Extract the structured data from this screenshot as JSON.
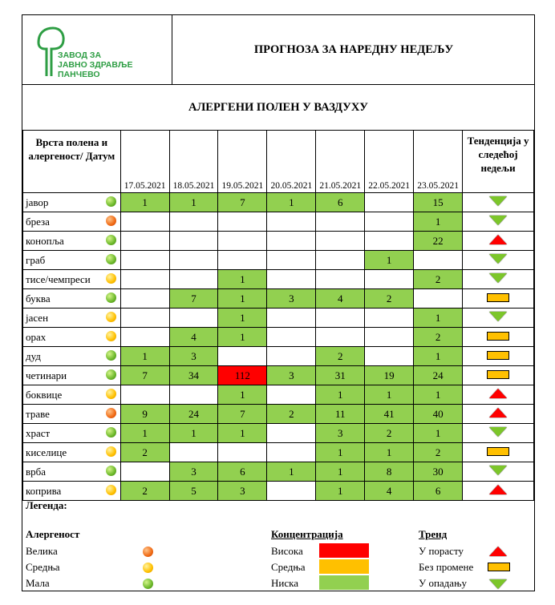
{
  "logo": {
    "line1": "ЗАВОД ЗА",
    "line2": "ЈАВНО ЗДРАВЉЕ",
    "line3": "ПАНЧЕВО",
    "color": "#2e9e44"
  },
  "title": "ПРОГНОЗА ЗА НАРЕДНУ НЕДЕЉУ",
  "subtitle": "АЛЕРГЕНИ ПОЛЕН У ВАЗДУХУ",
  "table": {
    "name_header": "Врста полена и алергеност/ Датум",
    "trend_header": "Тенденција у следећој недељи",
    "dates": [
      "17.05.2021",
      "18.05.2021",
      "19.05.2021",
      "20.05.2021",
      "21.05.2021",
      "22.05.2021",
      "23.05.2021"
    ],
    "rows": [
      {
        "name": "јавор",
        "allergen": "low",
        "values": [
          "1",
          "1",
          "7",
          "1",
          "6",
          "",
          "15"
        ],
        "levels": [
          "low",
          "low",
          "low",
          "low",
          "low",
          "",
          "low"
        ],
        "trend": "down"
      },
      {
        "name": "бреза",
        "allergen": "high",
        "values": [
          "",
          "",
          "",
          "",
          "",
          "",
          "1"
        ],
        "levels": [
          "",
          "",
          "",
          "",
          "",
          "",
          "low"
        ],
        "trend": "down"
      },
      {
        "name": "конопља",
        "allergen": "low",
        "values": [
          "",
          "",
          "",
          "",
          "",
          "",
          "22"
        ],
        "levels": [
          "",
          "",
          "",
          "",
          "",
          "",
          "low"
        ],
        "trend": "up"
      },
      {
        "name": "граб",
        "allergen": "low",
        "values": [
          "",
          "",
          "",
          "",
          "",
          "1",
          ""
        ],
        "levels": [
          "",
          "",
          "",
          "",
          "",
          "low",
          ""
        ],
        "trend": "down"
      },
      {
        "name": "тисе/чемпреси",
        "allergen": "mid",
        "values": [
          "",
          "",
          "1",
          "",
          "",
          "",
          "2"
        ],
        "levels": [
          "",
          "",
          "low",
          "",
          "",
          "",
          "low"
        ],
        "trend": "down"
      },
      {
        "name": "буква",
        "allergen": "low",
        "values": [
          "",
          "7",
          "1",
          "3",
          "4",
          "2",
          ""
        ],
        "levels": [
          "",
          "low",
          "low",
          "low",
          "low",
          "low",
          ""
        ],
        "trend": "flat"
      },
      {
        "name": "јасен",
        "allergen": "mid",
        "values": [
          "",
          "",
          "1",
          "",
          "",
          "",
          "1"
        ],
        "levels": [
          "",
          "",
          "low",
          "",
          "",
          "",
          "low"
        ],
        "trend": "down"
      },
      {
        "name": "орах",
        "allergen": "mid",
        "values": [
          "",
          "4",
          "1",
          "",
          "",
          "",
          "2"
        ],
        "levels": [
          "",
          "low",
          "low",
          "",
          "",
          "",
          "low"
        ],
        "trend": "flat"
      },
      {
        "name": "дуд",
        "allergen": "low",
        "values": [
          "1",
          "3",
          "",
          "",
          "2",
          "",
          "1"
        ],
        "levels": [
          "low",
          "low",
          "",
          "",
          "low",
          "",
          "low"
        ],
        "trend": "flat"
      },
      {
        "name": "четинари",
        "allergen": "low",
        "values": [
          "7",
          "34",
          "112",
          "3",
          "31",
          "19",
          "24"
        ],
        "levels": [
          "low",
          "low",
          "high",
          "low",
          "low",
          "low",
          "low"
        ],
        "trend": "flat"
      },
      {
        "name": "боквице",
        "allergen": "mid",
        "values": [
          "",
          "",
          "1",
          "",
          "1",
          "1",
          "1"
        ],
        "levels": [
          "",
          "",
          "low",
          "",
          "low",
          "low",
          "low"
        ],
        "trend": "up"
      },
      {
        "name": "траве",
        "allergen": "high",
        "values": [
          "9",
          "24",
          "7",
          "2",
          "11",
          "41",
          "40"
        ],
        "levels": [
          "low",
          "low",
          "low",
          "low",
          "low",
          "low",
          "low"
        ],
        "trend": "up"
      },
      {
        "name": "храст",
        "allergen": "low",
        "values": [
          "1",
          "1",
          "1",
          "",
          "3",
          "2",
          "1"
        ],
        "levels": [
          "low",
          "low",
          "low",
          "",
          "low",
          "low",
          "low"
        ],
        "trend": "down"
      },
      {
        "name": "киселице",
        "allergen": "mid",
        "values": [
          "2",
          "",
          "",
          "",
          "1",
          "1",
          "2"
        ],
        "levels": [
          "low",
          "",
          "",
          "",
          "low",
          "low",
          "low"
        ],
        "trend": "flat"
      },
      {
        "name": "врба",
        "allergen": "low",
        "values": [
          "",
          "3",
          "6",
          "1",
          "1",
          "8",
          "30"
        ],
        "levels": [
          "",
          "low",
          "low",
          "low",
          "low",
          "low",
          "low"
        ],
        "trend": "down"
      },
      {
        "name": "коприва",
        "allergen": "mid",
        "values": [
          "2",
          "5",
          "3",
          "",
          "1",
          "4",
          "6"
        ],
        "levels": [
          "low",
          "low",
          "low",
          "",
          "low",
          "low",
          "low"
        ],
        "trend": "up"
      }
    ]
  },
  "legend": {
    "title": "Легенда:",
    "allergen_title": "Алергеност",
    "allergen_items": [
      "Велика",
      "Средња",
      "Мала"
    ],
    "conc_title": "Концентрација",
    "conc_items": [
      "Висока",
      "Средња",
      "Ниска"
    ],
    "trend_title": "Тренд",
    "trend_items": [
      "У порасту",
      "Без промене",
      "У опадању"
    ]
  },
  "colors": {
    "low": "#92d050",
    "mid": "#ffc000",
    "high": "#ff0000"
  }
}
